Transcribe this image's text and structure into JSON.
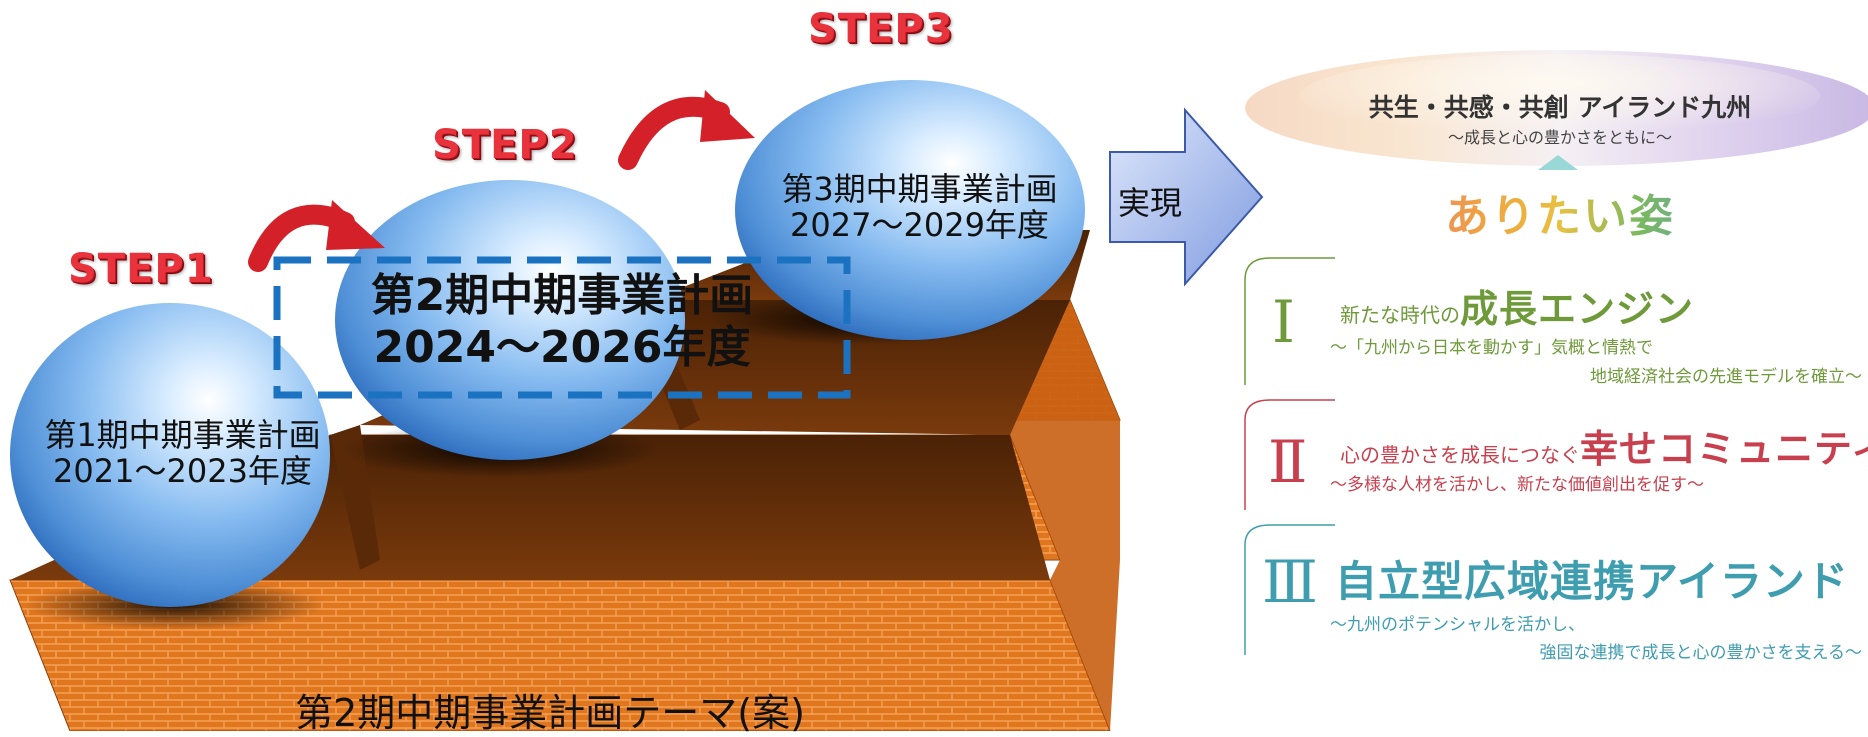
{
  "steps": [
    {
      "label": "STEP1"
    },
    {
      "label": "STEP2"
    },
    {
      "label": "STEP3"
    }
  ],
  "plans": [
    {
      "line1": "第1期中期事業計画",
      "line2": "2021～2023年度"
    },
    {
      "line1": "第2期中期事業計画",
      "line2": "2024～2026年度"
    },
    {
      "line1": "第3期中期事業計画",
      "line2": "2027～2029年度"
    }
  ],
  "caption": "第2期中期事業計画テーマ(案)",
  "arrow_label": "実現",
  "vision": {
    "title": "共生・共感・共創 アイランド九州",
    "subtitle": "～成長と心の豊かさをともに～"
  },
  "ideal_heading": "ありたい姿",
  "pillars": [
    {
      "numeral": "Ⅰ",
      "lead": "新たな時代の",
      "emphasis": "成長エンジン",
      "sub1": "～「九州から日本を動かす」気概と情熱で",
      "sub2": "地域経済社会の先進モデルを確立～",
      "color": "#6f9a3a"
    },
    {
      "numeral": "Ⅱ",
      "lead": "心の豊かさを成長につなぐ",
      "emphasis": "幸せコミュニティ",
      "sub1": "～多様な人材を活かし、新たな価値創出を促す～",
      "sub2": "",
      "color": "#c8404e"
    },
    {
      "numeral": "Ⅲ",
      "lead": "",
      "emphasis": "自立型広域連携アイランド",
      "sub1": "～九州のポテンシャルを活かし、",
      "sub2": "強固な連携で成長と心の豊かさを支える～",
      "color": "#3f9db0"
    }
  ],
  "colors": {
    "sphere": "#7fb6ee",
    "brick": "#e0761e",
    "brick_dark": "#5a2a08",
    "step_label": "#e8323c",
    "curve_arrow": "#d42028",
    "highlight_box": "#1a72c0",
    "block_arrow": "#8fa8e0"
  }
}
